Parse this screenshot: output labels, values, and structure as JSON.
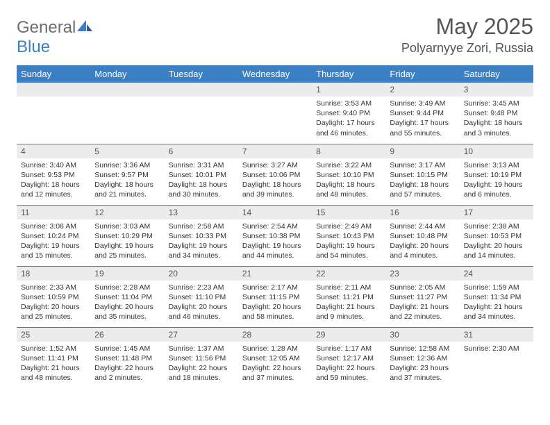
{
  "logo": {
    "text_general": "General",
    "text_blue": "Blue"
  },
  "header": {
    "title": "May 2025",
    "location": "Polyarnyye Zori, Russia"
  },
  "colors": {
    "header_bar": "#3b7fc4",
    "daynum_bg": "#ececec",
    "text": "#333333",
    "title_text": "#555555",
    "rule": "#3b7fc4",
    "background": "#ffffff"
  },
  "layout": {
    "week_start": "Sunday",
    "columns": 7,
    "rows": 5,
    "cell_border_top": true
  },
  "weekdays": [
    "Sunday",
    "Monday",
    "Tuesday",
    "Wednesday",
    "Thursday",
    "Friday",
    "Saturday"
  ],
  "days": [
    {
      "row": 0,
      "col": 0,
      "num": "",
      "sunrise": "",
      "sunset": "",
      "daylight": ""
    },
    {
      "row": 0,
      "col": 1,
      "num": "",
      "sunrise": "",
      "sunset": "",
      "daylight": ""
    },
    {
      "row": 0,
      "col": 2,
      "num": "",
      "sunrise": "",
      "sunset": "",
      "daylight": ""
    },
    {
      "row": 0,
      "col": 3,
      "num": "",
      "sunrise": "",
      "sunset": "",
      "daylight": ""
    },
    {
      "row": 0,
      "col": 4,
      "num": "1",
      "sunrise": "Sunrise: 3:53 AM",
      "sunset": "Sunset: 9:40 PM",
      "daylight": "Daylight: 17 hours and 46 minutes."
    },
    {
      "row": 0,
      "col": 5,
      "num": "2",
      "sunrise": "Sunrise: 3:49 AM",
      "sunset": "Sunset: 9:44 PM",
      "daylight": "Daylight: 17 hours and 55 minutes."
    },
    {
      "row": 0,
      "col": 6,
      "num": "3",
      "sunrise": "Sunrise: 3:45 AM",
      "sunset": "Sunset: 9:48 PM",
      "daylight": "Daylight: 18 hours and 3 minutes."
    },
    {
      "row": 1,
      "col": 0,
      "num": "4",
      "sunrise": "Sunrise: 3:40 AM",
      "sunset": "Sunset: 9:53 PM",
      "daylight": "Daylight: 18 hours and 12 minutes."
    },
    {
      "row": 1,
      "col": 1,
      "num": "5",
      "sunrise": "Sunrise: 3:36 AM",
      "sunset": "Sunset: 9:57 PM",
      "daylight": "Daylight: 18 hours and 21 minutes."
    },
    {
      "row": 1,
      "col": 2,
      "num": "6",
      "sunrise": "Sunrise: 3:31 AM",
      "sunset": "Sunset: 10:01 PM",
      "daylight": "Daylight: 18 hours and 30 minutes."
    },
    {
      "row": 1,
      "col": 3,
      "num": "7",
      "sunrise": "Sunrise: 3:27 AM",
      "sunset": "Sunset: 10:06 PM",
      "daylight": "Daylight: 18 hours and 39 minutes."
    },
    {
      "row": 1,
      "col": 4,
      "num": "8",
      "sunrise": "Sunrise: 3:22 AM",
      "sunset": "Sunset: 10:10 PM",
      "daylight": "Daylight: 18 hours and 48 minutes."
    },
    {
      "row": 1,
      "col": 5,
      "num": "9",
      "sunrise": "Sunrise: 3:17 AM",
      "sunset": "Sunset: 10:15 PM",
      "daylight": "Daylight: 18 hours and 57 minutes."
    },
    {
      "row": 1,
      "col": 6,
      "num": "10",
      "sunrise": "Sunrise: 3:13 AM",
      "sunset": "Sunset: 10:19 PM",
      "daylight": "Daylight: 19 hours and 6 minutes."
    },
    {
      "row": 2,
      "col": 0,
      "num": "11",
      "sunrise": "Sunrise: 3:08 AM",
      "sunset": "Sunset: 10:24 PM",
      "daylight": "Daylight: 19 hours and 15 minutes."
    },
    {
      "row": 2,
      "col": 1,
      "num": "12",
      "sunrise": "Sunrise: 3:03 AM",
      "sunset": "Sunset: 10:29 PM",
      "daylight": "Daylight: 19 hours and 25 minutes."
    },
    {
      "row": 2,
      "col": 2,
      "num": "13",
      "sunrise": "Sunrise: 2:58 AM",
      "sunset": "Sunset: 10:33 PM",
      "daylight": "Daylight: 19 hours and 34 minutes."
    },
    {
      "row": 2,
      "col": 3,
      "num": "14",
      "sunrise": "Sunrise: 2:54 AM",
      "sunset": "Sunset: 10:38 PM",
      "daylight": "Daylight: 19 hours and 44 minutes."
    },
    {
      "row": 2,
      "col": 4,
      "num": "15",
      "sunrise": "Sunrise: 2:49 AM",
      "sunset": "Sunset: 10:43 PM",
      "daylight": "Daylight: 19 hours and 54 minutes."
    },
    {
      "row": 2,
      "col": 5,
      "num": "16",
      "sunrise": "Sunrise: 2:44 AM",
      "sunset": "Sunset: 10:48 PM",
      "daylight": "Daylight: 20 hours and 4 minutes."
    },
    {
      "row": 2,
      "col": 6,
      "num": "17",
      "sunrise": "Sunrise: 2:38 AM",
      "sunset": "Sunset: 10:53 PM",
      "daylight": "Daylight: 20 hours and 14 minutes."
    },
    {
      "row": 3,
      "col": 0,
      "num": "18",
      "sunrise": "Sunrise: 2:33 AM",
      "sunset": "Sunset: 10:59 PM",
      "daylight": "Daylight: 20 hours and 25 minutes."
    },
    {
      "row": 3,
      "col": 1,
      "num": "19",
      "sunrise": "Sunrise: 2:28 AM",
      "sunset": "Sunset: 11:04 PM",
      "daylight": "Daylight: 20 hours and 35 minutes."
    },
    {
      "row": 3,
      "col": 2,
      "num": "20",
      "sunrise": "Sunrise: 2:23 AM",
      "sunset": "Sunset: 11:10 PM",
      "daylight": "Daylight: 20 hours and 46 minutes."
    },
    {
      "row": 3,
      "col": 3,
      "num": "21",
      "sunrise": "Sunrise: 2:17 AM",
      "sunset": "Sunset: 11:15 PM",
      "daylight": "Daylight: 20 hours and 58 minutes."
    },
    {
      "row": 3,
      "col": 4,
      "num": "22",
      "sunrise": "Sunrise: 2:11 AM",
      "sunset": "Sunset: 11:21 PM",
      "daylight": "Daylight: 21 hours and 9 minutes."
    },
    {
      "row": 3,
      "col": 5,
      "num": "23",
      "sunrise": "Sunrise: 2:05 AM",
      "sunset": "Sunset: 11:27 PM",
      "daylight": "Daylight: 21 hours and 22 minutes."
    },
    {
      "row": 3,
      "col": 6,
      "num": "24",
      "sunrise": "Sunrise: 1:59 AM",
      "sunset": "Sunset: 11:34 PM",
      "daylight": "Daylight: 21 hours and 34 minutes."
    },
    {
      "row": 4,
      "col": 0,
      "num": "25",
      "sunrise": "Sunrise: 1:52 AM",
      "sunset": "Sunset: 11:41 PM",
      "daylight": "Daylight: 21 hours and 48 minutes."
    },
    {
      "row": 4,
      "col": 1,
      "num": "26",
      "sunrise": "Sunrise: 1:45 AM",
      "sunset": "Sunset: 11:48 PM",
      "daylight": "Daylight: 22 hours and 2 minutes."
    },
    {
      "row": 4,
      "col": 2,
      "num": "27",
      "sunrise": "Sunrise: 1:37 AM",
      "sunset": "Sunset: 11:56 PM",
      "daylight": "Daylight: 22 hours and 18 minutes."
    },
    {
      "row": 4,
      "col": 3,
      "num": "28",
      "sunrise": "Sunrise: 1:28 AM",
      "sunset": "Sunset: 12:05 AM",
      "daylight": "Daylight: 22 hours and 37 minutes."
    },
    {
      "row": 4,
      "col": 4,
      "num": "29",
      "sunrise": "Sunrise: 1:17 AM",
      "sunset": "Sunset: 12:17 AM",
      "daylight": "Daylight: 22 hours and 59 minutes."
    },
    {
      "row": 4,
      "col": 5,
      "num": "30",
      "sunrise": "Sunrise: 12:58 AM",
      "sunset": "Sunset: 12:36 AM",
      "daylight": "Daylight: 23 hours and 37 minutes."
    },
    {
      "row": 4,
      "col": 6,
      "num": "31",
      "sunrise": "Sunrise: 2:30 AM",
      "sunset": "",
      "daylight": ""
    }
  ]
}
